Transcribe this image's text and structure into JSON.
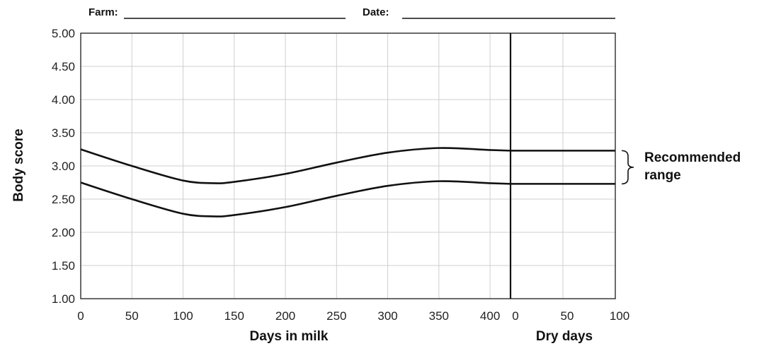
{
  "form": {
    "farm_label": "Farm:",
    "date_label": "Date:"
  },
  "chart_data": {
    "type": "line",
    "ylabel": "Body score",
    "ylim": [
      1.0,
      5.0
    ],
    "y_ticks": [
      "1.00",
      "1.50",
      "2.00",
      "2.50",
      "3.00",
      "3.50",
      "4.00",
      "4.50",
      "5.00"
    ],
    "y_tick_values": [
      1.0,
      1.5,
      2.0,
      2.5,
      3.0,
      3.5,
      4.0,
      4.5,
      5.0
    ],
    "grid": true,
    "panels": [
      {
        "xlabel": "Days in milk",
        "xlim": [
          0,
          420
        ],
        "x_ticks": [
          0,
          50,
          100,
          150,
          200,
          250,
          300,
          350,
          400
        ]
      },
      {
        "xlabel": "Dry days",
        "xlim": [
          0,
          100
        ],
        "x_ticks": [
          0,
          50,
          100
        ]
      }
    ],
    "series": [
      {
        "milk_points": [
          [
            0,
            3.25
          ],
          [
            50,
            3.0
          ],
          [
            100,
            2.78
          ],
          [
            130,
            2.74
          ],
          [
            150,
            2.76
          ],
          [
            200,
            2.88
          ],
          [
            250,
            3.05
          ],
          [
            300,
            3.2
          ],
          [
            350,
            3.27
          ],
          [
            400,
            3.24
          ],
          [
            420,
            3.23
          ]
        ],
        "dry_points": [
          [
            0,
            3.23
          ],
          [
            100,
            3.23
          ]
        ]
      },
      {
        "milk_points": [
          [
            0,
            2.75
          ],
          [
            50,
            2.5
          ],
          [
            100,
            2.28
          ],
          [
            130,
            2.24
          ],
          [
            150,
            2.26
          ],
          [
            200,
            2.38
          ],
          [
            250,
            2.55
          ],
          [
            300,
            2.7
          ],
          [
            350,
            2.77
          ],
          [
            400,
            2.74
          ],
          [
            420,
            2.73
          ]
        ],
        "dry_points": [
          [
            0,
            2.73
          ],
          [
            100,
            2.73
          ]
        ]
      }
    ],
    "annotation": {
      "line1": "Recommended",
      "line2": "range",
      "upper": 3.23,
      "lower": 2.73
    }
  }
}
